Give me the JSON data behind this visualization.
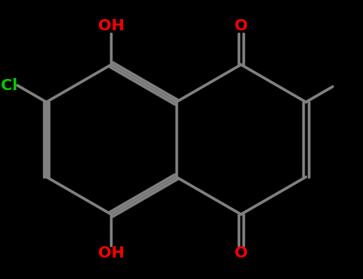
{
  "background_color": "#000000",
  "bond_color": "#808080",
  "bond_width": 2.5,
  "atom_colors": {
    "O": "#ff0000",
    "Cl": "#00cc00",
    "C": "#808080",
    "H": "#808080"
  },
  "label_fontsize": 14,
  "fig_width": 4.55,
  "fig_height": 3.5
}
